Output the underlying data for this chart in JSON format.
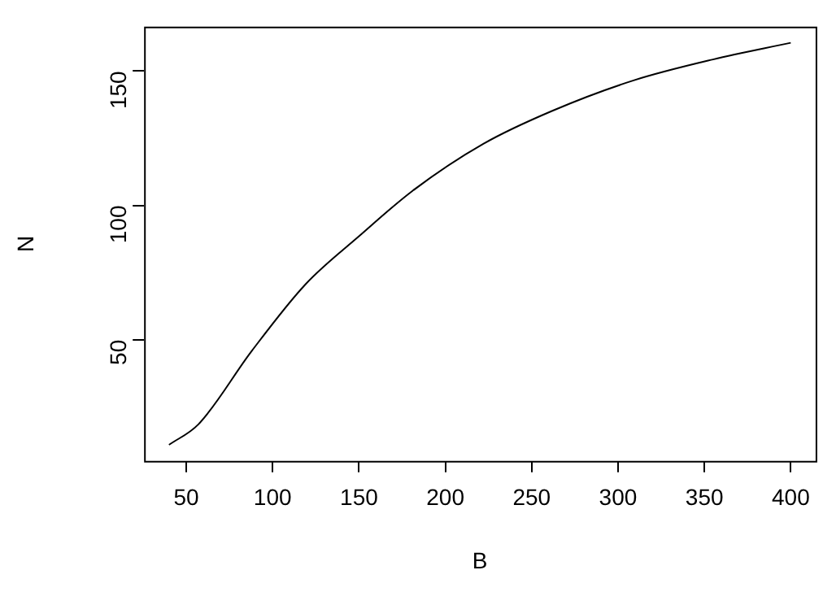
{
  "chart_data": {
    "type": "line",
    "xlabel": "B",
    "ylabel": "N",
    "x": [
      40,
      57,
      88,
      119,
      150,
      181,
      222,
      262,
      309,
      355,
      400
    ],
    "series": [
      {
        "color": "#000000",
        "values": [
          10.9,
          18.5,
          45.9,
          70.6,
          88.5,
          105.4,
          122.9,
          135.2,
          146.5,
          154.3,
          160.5
        ]
      }
    ],
    "xlim": [
      25.6,
      414.4
    ],
    "xticks": [
      50,
      100,
      150,
      200,
      250,
      300,
      350,
      400
    ],
    "ylim": [
      4.9,
      166.5
    ],
    "yticks": [
      50,
      100,
      150
    ],
    "grid": false,
    "legend": false,
    "marker": "none",
    "line_style": "solid"
  }
}
